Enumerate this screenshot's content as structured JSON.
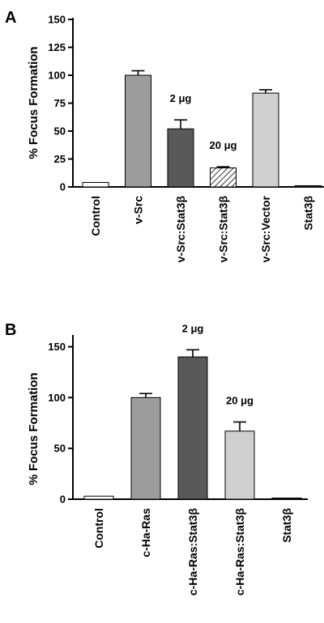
{
  "chart_data": [
    {
      "type": "bar",
      "panel_label": "A",
      "ylabel": "% Focus Formation",
      "ylim": [
        0,
        150
      ],
      "yticks": [
        "0",
        "25",
        "50",
        "75",
        "100",
        "125",
        "150"
      ],
      "categories": [
        "Control",
        "v-Src",
        "v-Src:Stat3β",
        "v-Src:Stat3β",
        "v-Src:Vector",
        "Stat3β"
      ],
      "values": [
        4,
        100,
        52,
        17,
        84,
        1
      ],
      "errors": [
        0,
        4,
        8,
        1,
        3,
        0
      ],
      "colors": [
        "#ffffff",
        "#9c9c9c",
        "#595959",
        "hatch",
        "#d0d0d0",
        "#333333"
      ],
      "annotations": [
        {
          "text": "2 μg",
          "category_index": 2
        },
        {
          "text": "20 μg",
          "category_index": 3
        }
      ],
      "grid": false
    },
    {
      "type": "bar",
      "panel_label": "B",
      "ylabel": "% Focus Formation",
      "ylim": [
        0,
        160
      ],
      "yticks": [
        "0",
        "50",
        "100",
        "150"
      ],
      "categories": [
        "Control",
        "c-Ha-Ras",
        "c-Ha-Ras:Stat3β",
        "c-Ha-Ras:Stat3β",
        "Stat3β"
      ],
      "values": [
        3,
        100,
        140,
        67,
        1
      ],
      "errors": [
        0,
        4,
        7,
        9,
        0
      ],
      "colors": [
        "#ffffff",
        "#9c9c9c",
        "#595959",
        "#cfcfcf",
        "#333333"
      ],
      "annotations": [
        {
          "text": "2 μg",
          "category_index": 2
        },
        {
          "text": "20 μg",
          "category_index": 3
        }
      ],
      "grid": false
    }
  ]
}
